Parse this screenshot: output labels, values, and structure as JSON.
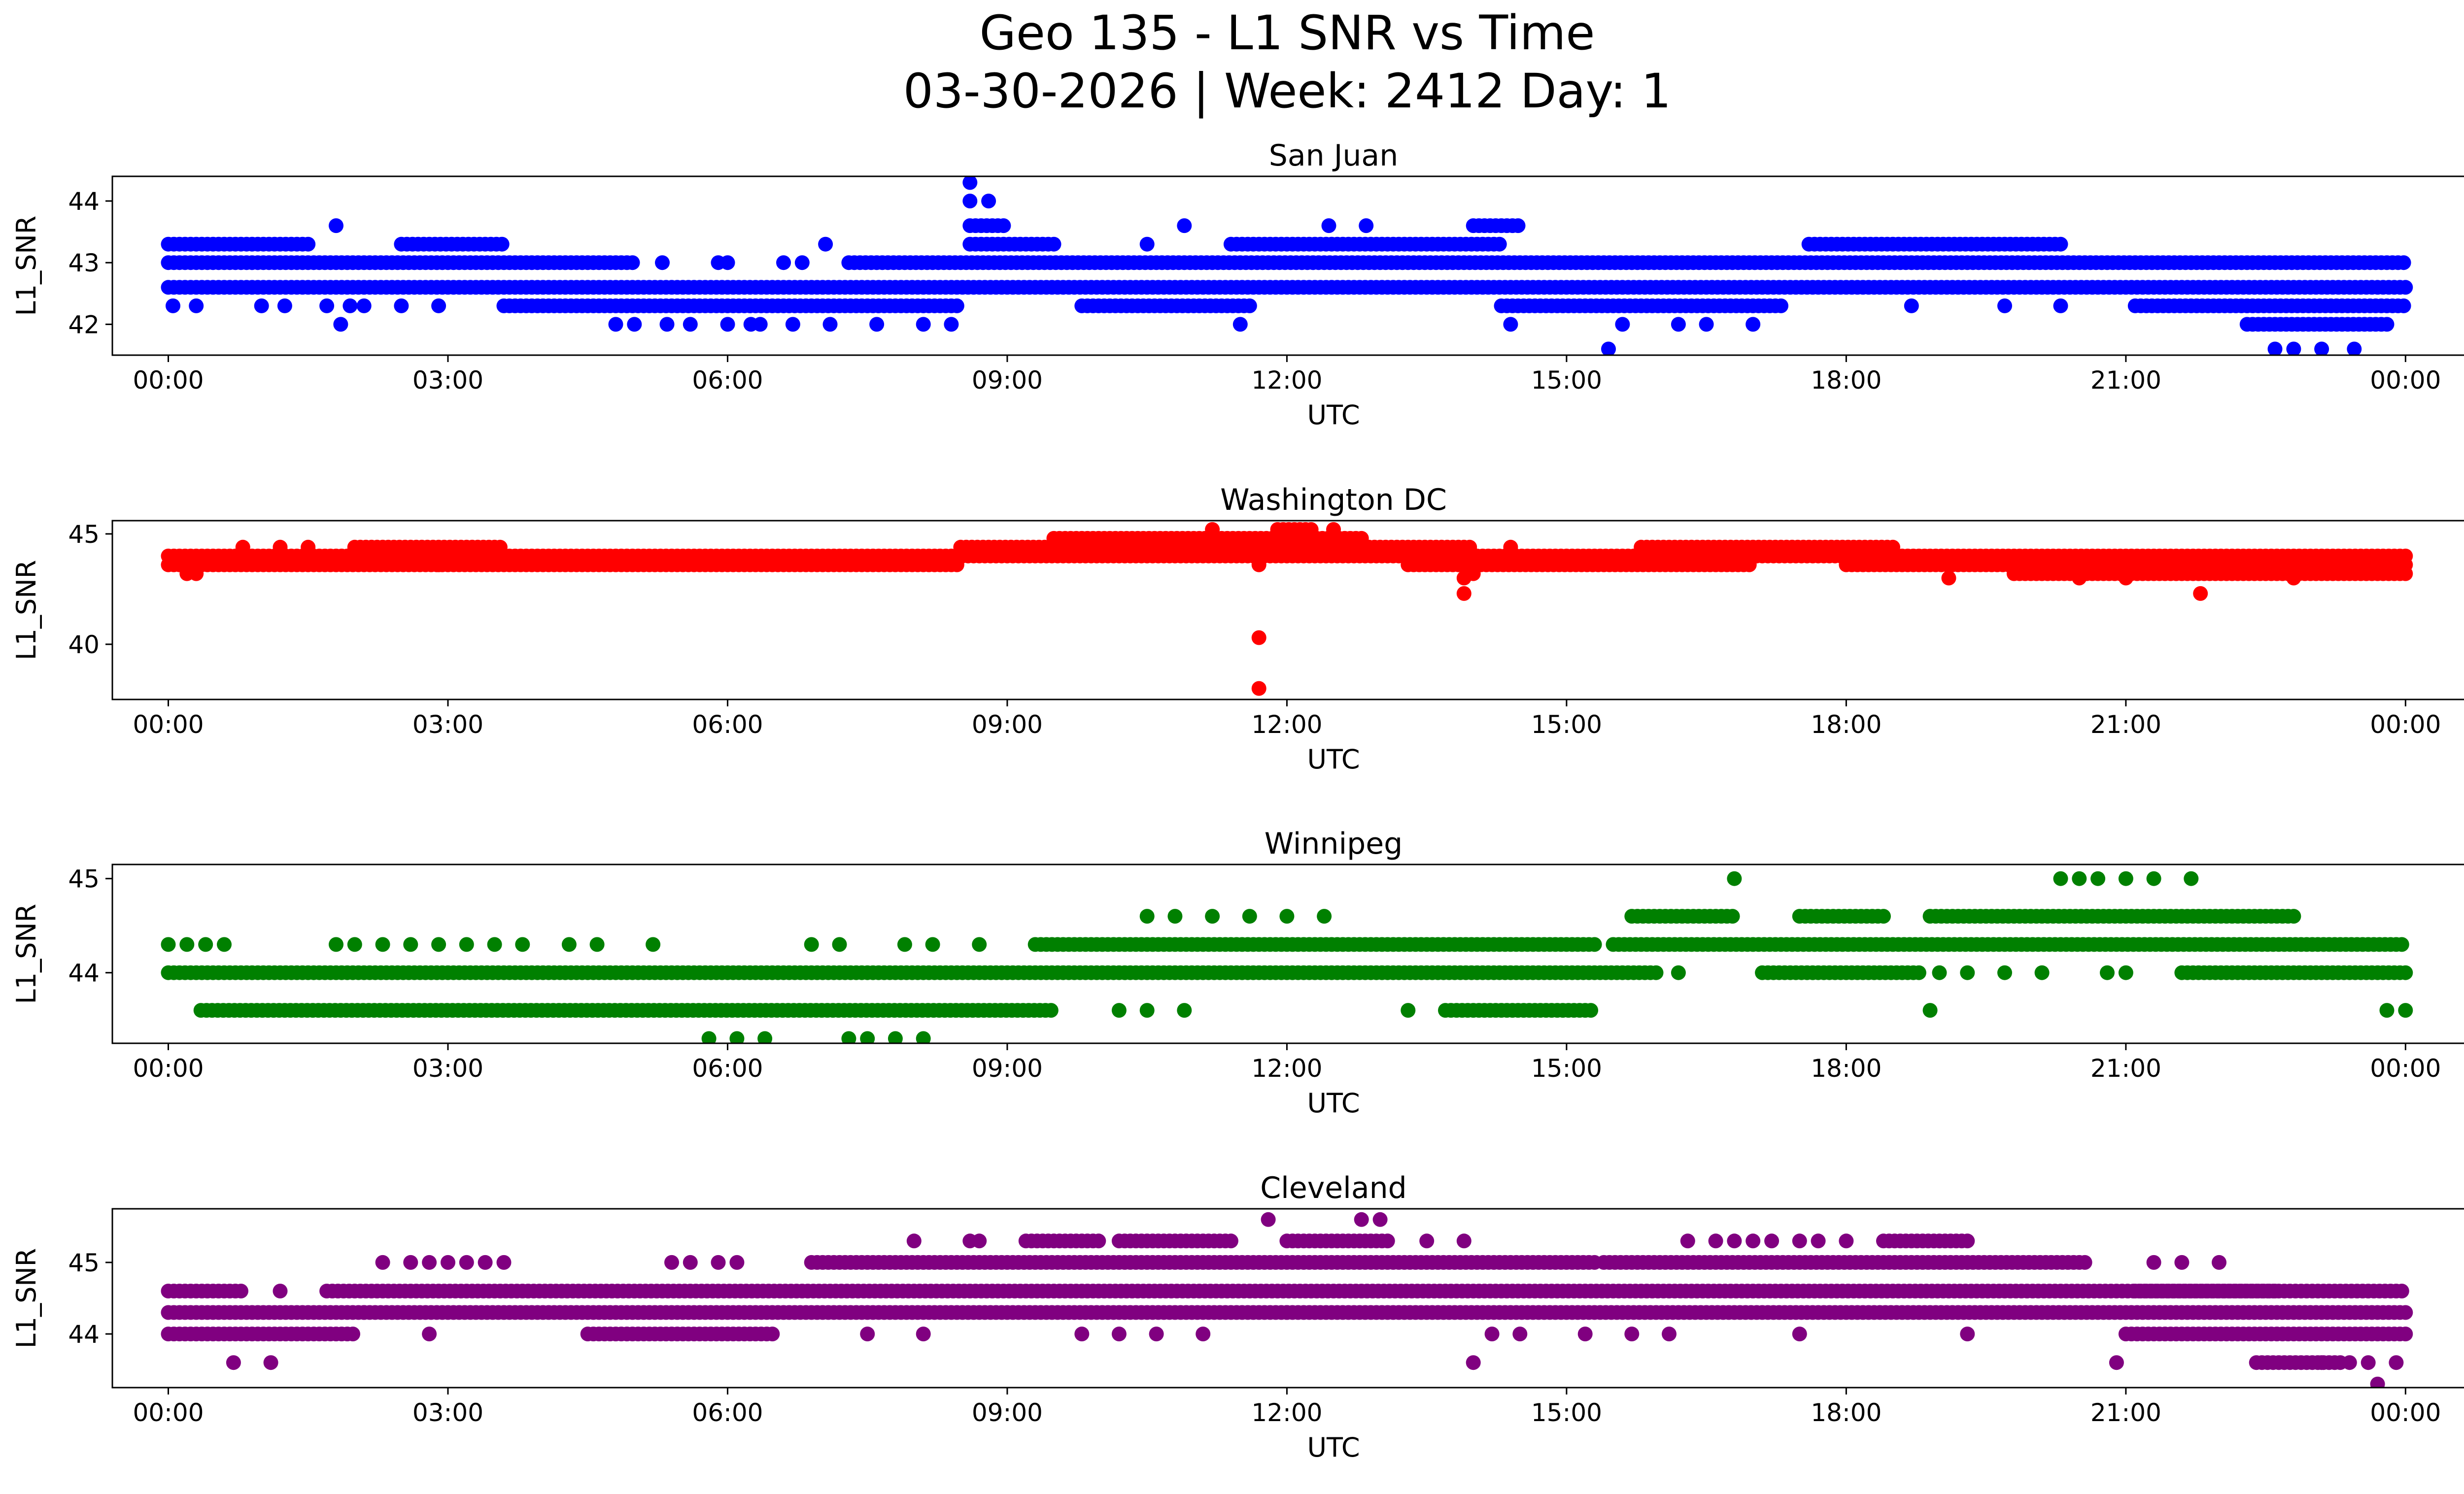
{
  "figure": {
    "title_line1": "Geo 135 - L1 SNR vs Time",
    "title_line2": "03-30-2026 | Week: 2412 Day: 1"
  },
  "chart_data": [
    {
      "type": "scatter",
      "title": "San Juan",
      "xlabel": "UTC",
      "ylabel": "L1_SNR",
      "color": "#0000ff",
      "xlim": [
        -0.6,
        25.6
      ],
      "ylim": [
        41.5,
        44.4
      ],
      "yticks": [
        42,
        43,
        44
      ],
      "xtick_labels": [
        "00:00",
        "03:00",
        "06:00",
        "09:00",
        "12:00",
        "15:00",
        "18:00",
        "21:00",
        "00:00"
      ],
      "bands": [
        {
          "y": 42.6,
          "from": 0.0,
          "to": 24.0
        },
        {
          "y": 43.0,
          "from": 0.0,
          "to": 5.0
        },
        {
          "y": 43.0,
          "from": 7.3,
          "to": 24.0
        },
        {
          "y": 42.3,
          "from": 3.6,
          "to": 8.5
        },
        {
          "y": 42.3,
          "from": 9.8,
          "to": 11.6
        },
        {
          "y": 42.3,
          "from": 14.3,
          "to": 17.3
        },
        {
          "y": 42.3,
          "from": 21.1,
          "to": 24.0
        },
        {
          "y": 43.3,
          "from": 0.0,
          "to": 1.5
        },
        {
          "y": 43.3,
          "from": 2.5,
          "to": 3.6
        },
        {
          "y": 43.3,
          "from": 8.6,
          "to": 9.5
        },
        {
          "y": 43.3,
          "from": 11.4,
          "to": 14.3
        },
        {
          "y": 43.3,
          "from": 17.6,
          "to": 20.3
        },
        {
          "y": 42.0,
          "from": 22.3,
          "to": 23.8
        },
        {
          "y": 43.6,
          "from": 8.6,
          "to": 9.0
        },
        {
          "y": 43.6,
          "from": 14.0,
          "to": 14.5
        }
      ],
      "points": [
        [
          0.05,
          42.3
        ],
        [
          0.3,
          42.3
        ],
        [
          1.0,
          42.3
        ],
        [
          1.25,
          42.3
        ],
        [
          1.7,
          42.3
        ],
        [
          1.95,
          42.3
        ],
        [
          2.1,
          42.3
        ],
        [
          2.5,
          42.3
        ],
        [
          2.9,
          42.3
        ],
        [
          1.85,
          42.0
        ],
        [
          4.8,
          42.0
        ],
        [
          5.0,
          42.0
        ],
        [
          5.35,
          42.0
        ],
        [
          5.6,
          42.0
        ],
        [
          6.0,
          42.0
        ],
        [
          6.25,
          42.0
        ],
        [
          6.35,
          42.0
        ],
        [
          6.7,
          42.0
        ],
        [
          7.1,
          42.0
        ],
        [
          7.6,
          42.0
        ],
        [
          8.1,
          42.0
        ],
        [
          8.4,
          42.0
        ],
        [
          11.5,
          42.0
        ],
        [
          14.4,
          42.0
        ],
        [
          15.6,
          42.0
        ],
        [
          16.2,
          42.0
        ],
        [
          16.5,
          42.0
        ],
        [
          17.0,
          42.0
        ],
        [
          5.3,
          43.0
        ],
        [
          5.9,
          43.0
        ],
        [
          6.0,
          43.0
        ],
        [
          6.6,
          43.0
        ],
        [
          6.8,
          43.0
        ],
        [
          1.8,
          43.6
        ],
        [
          10.9,
          43.6
        ],
        [
          12.45,
          43.6
        ],
        [
          12.85,
          43.6
        ],
        [
          7.05,
          43.3
        ],
        [
          10.5,
          43.3
        ],
        [
          15.45,
          41.6
        ],
        [
          22.6,
          41.6
        ],
        [
          22.8,
          41.6
        ],
        [
          23.1,
          41.6
        ],
        [
          23.45,
          41.6
        ],
        [
          8.6,
          44.3
        ],
        [
          8.6,
          44.0
        ],
        [
          8.8,
          44.0
        ],
        [
          18.7,
          42.3
        ],
        [
          19.7,
          42.3
        ],
        [
          20.3,
          42.3
        ]
      ]
    },
    {
      "type": "scatter",
      "title": "Washington DC",
      "xlabel": "UTC",
      "ylabel": "L1_SNR",
      "color": "#ff0000",
      "xlim": [
        -0.6,
        25.6
      ],
      "ylim": [
        37.5,
        45.6
      ],
      "yticks": [
        40,
        45
      ],
      "xtick_labels": [
        "00:00",
        "03:00",
        "06:00",
        "09:00",
        "12:00",
        "15:00",
        "18:00",
        "21:00",
        "00:00"
      ],
      "bands": [
        {
          "y": 44.0,
          "from": 0.0,
          "to": 24.0
        },
        {
          "y": 43.6,
          "from": 0.0,
          "to": 8.5
        },
        {
          "y": 43.6,
          "from": 13.3,
          "to": 17.0
        },
        {
          "y": 43.6,
          "from": 18.0,
          "to": 24.0
        },
        {
          "y": 43.2,
          "from": 19.8,
          "to": 24.0
        },
        {
          "y": 44.4,
          "from": 2.0,
          "to": 3.6
        },
        {
          "y": 44.4,
          "from": 8.5,
          "to": 14.0
        },
        {
          "y": 44.4,
          "from": 15.8,
          "to": 18.5
        },
        {
          "y": 44.8,
          "from": 9.5,
          "to": 12.8
        },
        {
          "y": 45.2,
          "from": 11.9,
          "to": 12.3
        }
      ],
      "points": [
        [
          0.2,
          43.2
        ],
        [
          0.3,
          43.2
        ],
        [
          11.7,
          43.6
        ],
        [
          11.7,
          40.3
        ],
        [
          11.7,
          38.0
        ],
        [
          11.2,
          45.2
        ],
        [
          12.5,
          45.2
        ],
        [
          13.9,
          43.0
        ],
        [
          13.9,
          42.3
        ],
        [
          14.0,
          43.2
        ],
        [
          19.1,
          43.0
        ],
        [
          21.8,
          42.3
        ],
        [
          20.5,
          43.0
        ],
        [
          21.0,
          43.0
        ],
        [
          22.8,
          43.0
        ],
        [
          14.4,
          44.4
        ],
        [
          2.9,
          43.6
        ],
        [
          0.8,
          44.4
        ],
        [
          1.2,
          44.4
        ],
        [
          1.5,
          44.4
        ]
      ]
    },
    {
      "type": "scatter",
      "title": "Winnipeg",
      "xlabel": "UTC",
      "ylabel": "L1_SNR",
      "color": "#008000",
      "xlim": [
        -0.6,
        25.6
      ],
      "ylim": [
        43.25,
        45.15
      ],
      "yticks": [
        44,
        45
      ],
      "xtick_labels": [
        "00:00",
        "03:00",
        "06:00",
        "09:00",
        "12:00",
        "15:00",
        "18:00",
        "21:00",
        "00:00"
      ],
      "bands": [
        {
          "y": 44.0,
          "from": 0.0,
          "to": 16.0
        },
        {
          "y": 44.0,
          "from": 21.6,
          "to": 24.0
        },
        {
          "y": 43.6,
          "from": 0.35,
          "to": 9.5
        },
        {
          "y": 43.6,
          "from": 13.7,
          "to": 15.3
        },
        {
          "y": 44.3,
          "from": 9.3,
          "to": 15.3
        },
        {
          "y": 44.3,
          "from": 15.5,
          "to": 24.0
        },
        {
          "y": 44.6,
          "from": 15.7,
          "to": 16.8
        },
        {
          "y": 44.6,
          "from": 17.5,
          "to": 18.4
        },
        {
          "y": 44.6,
          "from": 18.9,
          "to": 22.8
        },
        {
          "y": 44.0,
          "from": 17.1,
          "to": 18.8
        }
      ],
      "points": [
        [
          0.0,
          44.3
        ],
        [
          0.2,
          44.3
        ],
        [
          0.4,
          44.3
        ],
        [
          0.6,
          44.3
        ],
        [
          1.8,
          44.3
        ],
        [
          2.0,
          44.3
        ],
        [
          2.3,
          44.3
        ],
        [
          2.6,
          44.3
        ],
        [
          2.9,
          44.3
        ],
        [
          3.2,
          44.3
        ],
        [
          3.5,
          44.3
        ],
        [
          3.8,
          44.3
        ],
        [
          4.3,
          44.3
        ],
        [
          4.6,
          44.3
        ],
        [
          5.2,
          44.3
        ],
        [
          6.9,
          44.3
        ],
        [
          7.2,
          44.3
        ],
        [
          7.9,
          44.3
        ],
        [
          8.2,
          44.3
        ],
        [
          8.7,
          44.3
        ],
        [
          5.8,
          43.3
        ],
        [
          6.1,
          43.3
        ],
        [
          6.4,
          43.3
        ],
        [
          7.3,
          43.3
        ],
        [
          7.5,
          43.3
        ],
        [
          7.8,
          43.3
        ],
        [
          8.1,
          43.3
        ],
        [
          10.5,
          44.6
        ],
        [
          10.8,
          44.6
        ],
        [
          11.2,
          44.6
        ],
        [
          11.6,
          44.6
        ],
        [
          12.0,
          44.6
        ],
        [
          12.4,
          44.6
        ],
        [
          16.8,
          45.0
        ],
        [
          20.3,
          45.0
        ],
        [
          20.5,
          45.0
        ],
        [
          20.7,
          45.0
        ],
        [
          21.0,
          45.0
        ],
        [
          21.3,
          45.0
        ],
        [
          21.7,
          45.0
        ],
        [
          10.2,
          43.6
        ],
        [
          10.5,
          43.6
        ],
        [
          10.9,
          43.6
        ],
        [
          13.3,
          43.6
        ],
        [
          18.9,
          43.6
        ],
        [
          23.8,
          43.6
        ],
        [
          24.0,
          43.6
        ],
        [
          16.2,
          44.0
        ],
        [
          19.0,
          44.0
        ],
        [
          19.3,
          44.0
        ],
        [
          19.7,
          44.0
        ],
        [
          20.1,
          44.0
        ],
        [
          20.8,
          44.0
        ],
        [
          21.0,
          44.0
        ]
      ]
    },
    {
      "type": "scatter",
      "title": "Cleveland",
      "xlabel": "UTC",
      "ylabel": "L1_SNR",
      "color": "#800080",
      "xlim": [
        -0.6,
        25.6
      ],
      "ylim": [
        43.25,
        45.75
      ],
      "yticks": [
        44,
        45
      ],
      "xtick_labels": [
        "00:00",
        "03:00",
        "06:00",
        "09:00",
        "12:00",
        "15:00",
        "18:00",
        "21:00",
        "00:00"
      ],
      "bands": [
        {
          "y": 44.3,
          "from": 0.0,
          "to": 24.0
        },
        {
          "y": 44.6,
          "from": 0.0,
          "to": 0.8
        },
        {
          "y": 44.6,
          "from": 1.7,
          "to": 24.0
        },
        {
          "y": 44.0,
          "from": 0.0,
          "to": 2.0
        },
        {
          "y": 44.0,
          "from": 4.5,
          "to": 6.5
        },
        {
          "y": 44.0,
          "from": 21.0,
          "to": 24.0
        },
        {
          "y": 45.0,
          "from": 6.9,
          "to": 15.3
        },
        {
          "y": 45.0,
          "from": 15.4,
          "to": 20.6
        },
        {
          "y": 44.6,
          "from": 21.1,
          "to": 22.6
        },
        {
          "y": 43.6,
          "from": 22.4,
          "to": 23.3
        },
        {
          "y": 45.3,
          "from": 9.2,
          "to": 10.0
        },
        {
          "y": 45.3,
          "from": 10.2,
          "to": 11.4
        },
        {
          "y": 45.3,
          "from": 12.0,
          "to": 13.1
        },
        {
          "y": 45.3,
          "from": 18.4,
          "to": 19.3
        }
      ],
      "points": [
        [
          0.7,
          43.6
        ],
        [
          1.1,
          43.6
        ],
        [
          14.0,
          43.6
        ],
        [
          20.9,
          43.6
        ],
        [
          23.1,
          43.6
        ],
        [
          23.4,
          43.6
        ],
        [
          23.6,
          43.6
        ],
        [
          23.9,
          43.6
        ],
        [
          23.7,
          43.3
        ],
        [
          11.8,
          45.6
        ],
        [
          12.8,
          45.6
        ],
        [
          13.0,
          45.6
        ],
        [
          8.0,
          45.3
        ],
        [
          8.6,
          45.3
        ],
        [
          8.7,
          45.3
        ],
        [
          13.5,
          45.3
        ],
        [
          13.9,
          45.3
        ],
        [
          16.3,
          45.3
        ],
        [
          16.6,
          45.3
        ],
        [
          16.8,
          45.3
        ],
        [
          17.0,
          45.3
        ],
        [
          17.2,
          45.3
        ],
        [
          17.5,
          45.3
        ],
        [
          17.7,
          45.3
        ],
        [
          18.0,
          45.3
        ],
        [
          2.3,
          45.0
        ],
        [
          2.6,
          45.0
        ],
        [
          2.8,
          45.0
        ],
        [
          3.0,
          45.0
        ],
        [
          3.2,
          45.0
        ],
        [
          3.4,
          45.0
        ],
        [
          3.6,
          45.0
        ],
        [
          5.4,
          45.0
        ],
        [
          5.6,
          45.0
        ],
        [
          5.9,
          45.0
        ],
        [
          6.1,
          45.0
        ],
        [
          21.3,
          45.0
        ],
        [
          21.6,
          45.0
        ],
        [
          22.0,
          45.0
        ],
        [
          2.8,
          44.0
        ],
        [
          7.5,
          44.0
        ],
        [
          8.1,
          44.0
        ],
        [
          9.8,
          44.0
        ],
        [
          10.2,
          44.0
        ],
        [
          10.6,
          44.0
        ],
        [
          11.1,
          44.0
        ],
        [
          14.2,
          44.0
        ],
        [
          14.5,
          44.0
        ],
        [
          15.2,
          44.0
        ],
        [
          15.7,
          44.0
        ],
        [
          16.1,
          44.0
        ],
        [
          17.5,
          44.0
        ],
        [
          19.3,
          44.0
        ],
        [
          1.2,
          44.6
        ],
        [
          2.1,
          44.3
        ],
        [
          12.0,
          44.3
        ]
      ]
    }
  ]
}
